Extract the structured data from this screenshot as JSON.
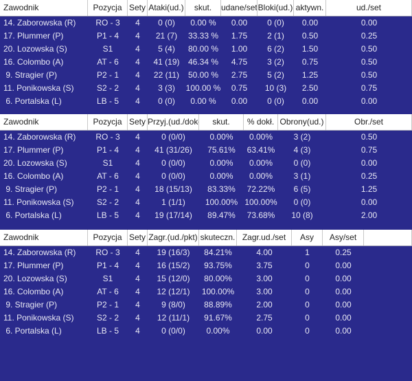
{
  "tables": [
    {
      "headers": [
        "Zawodnik",
        "Pozycja",
        "Sety",
        "Ataki(ud.)",
        "skut.",
        "udane/set",
        "Bloki(ud.)",
        "aktywn.",
        "ud./set"
      ],
      "rows": [
        [
          "14. Zaborowska (R)",
          "RO - 3",
          "4",
          "0 (0)",
          "0.00 %",
          "0.00",
          "0 (0)",
          "0.00",
          "0.00"
        ],
        [
          "17. Plummer (P)",
          "P1 - 4",
          "4",
          "21 (7)",
          "33.33 %",
          "1.75",
          "2 (1)",
          "0.50",
          "0.25"
        ],
        [
          "20. Lozowska (S)",
          "S1",
          "4",
          "5 (4)",
          "80.00 %",
          "1.00",
          "6 (2)",
          "1.50",
          "0.50"
        ],
        [
          "16. Colombo (A)",
          "AT - 6",
          "4",
          "41 (19)",
          "46.34 %",
          "4.75",
          "3 (2)",
          "0.75",
          "0.50"
        ],
        [
          " 9. Stragier (P)",
          "P2 - 1",
          "4",
          "22 (11)",
          "50.00 %",
          "2.75",
          "5 (2)",
          "1.25",
          "0.50"
        ],
        [
          "11. Ponikowska (S)",
          "S2 - 2",
          "4",
          "3 (3)",
          "100.00 %",
          "0.75",
          "10 (3)",
          "2.50",
          "0.75"
        ],
        [
          " 6. Portalska (L)",
          "LB - 5",
          "4",
          "0 (0)",
          "0.00 %",
          "0.00",
          "0 (0)",
          "0.00",
          "0.00"
        ]
      ]
    },
    {
      "headers": [
        "Zawodnik",
        "Pozycja",
        "Sety",
        "Przyj.(ud./dokł.)",
        "skut.",
        "% dokł.",
        "Obrony(ud.)",
        "Obr./set"
      ],
      "rows": [
        [
          "14. Zaborowska (R)",
          "RO - 3",
          "4",
          "0 (0/0)",
          "0.00%",
          "0.00%",
          "3 (2)",
          "0.50"
        ],
        [
          "17. Plummer (P)",
          "P1 - 4",
          "4",
          "41 (31/26)",
          "75.61%",
          "63.41%",
          "4 (3)",
          "0.75"
        ],
        [
          "20. Lozowska (S)",
          "S1",
          "4",
          "0 (0/0)",
          "0.00%",
          "0.00%",
          "0 (0)",
          "0.00"
        ],
        [
          "16. Colombo (A)",
          "AT - 6",
          "4",
          "0 (0/0)",
          "0.00%",
          "0.00%",
          "3 (1)",
          "0.25"
        ],
        [
          " 9. Stragier (P)",
          "P2 - 1",
          "4",
          "18 (15/13)",
          "83.33%",
          "72.22%",
          "6 (5)",
          "1.25"
        ],
        [
          "11. Ponikowska (S)",
          "S2 - 2",
          "4",
          "1 (1/1)",
          "100.00%",
          "100.00%",
          "0 (0)",
          "0.00"
        ],
        [
          " 6. Portalska (L)",
          "LB - 5",
          "4",
          "19 (17/14)",
          "89.47%",
          "73.68%",
          "10 (8)",
          "2.00"
        ]
      ]
    },
    {
      "headers": [
        "Zawodnik",
        "Pozycja",
        "Sety",
        "Zagr.(ud./pkt)",
        "skuteczn.",
        "Zagr.ud./set",
        "Asy",
        "Asy/set",
        ""
      ],
      "rows": [
        [
          "14. Zaborowska (R)",
          "RO - 3",
          "4",
          "19 (16/3)",
          "84.21%",
          "4.00",
          "1",
          "0.25",
          ""
        ],
        [
          "17. Plummer (P)",
          "P1 - 4",
          "4",
          "16 (15/2)",
          "93.75%",
          "3.75",
          "0",
          "0.00",
          ""
        ],
        [
          "20. Lozowska (S)",
          "S1",
          "4",
          "15 (12/0)",
          "80.00%",
          "3.00",
          "0",
          "0.00",
          ""
        ],
        [
          "16. Colombo (A)",
          "AT - 6",
          "4",
          "12 (12/1)",
          "100.00%",
          "3.00",
          "0",
          "0.00",
          ""
        ],
        [
          " 9. Stragier (P)",
          "P2 - 1",
          "4",
          "9 (8/0)",
          "88.89%",
          "2.00",
          "0",
          "0.00",
          ""
        ],
        [
          "11. Ponikowska (S)",
          "S2 - 2",
          "4",
          "12 (11/1)",
          "91.67%",
          "2.75",
          "0",
          "0.00",
          ""
        ],
        [
          " 6. Portalska (L)",
          "LB - 5",
          "4",
          "0 (0/0)",
          "0.00%",
          "0.00",
          "0",
          "0.00",
          ""
        ]
      ]
    }
  ]
}
